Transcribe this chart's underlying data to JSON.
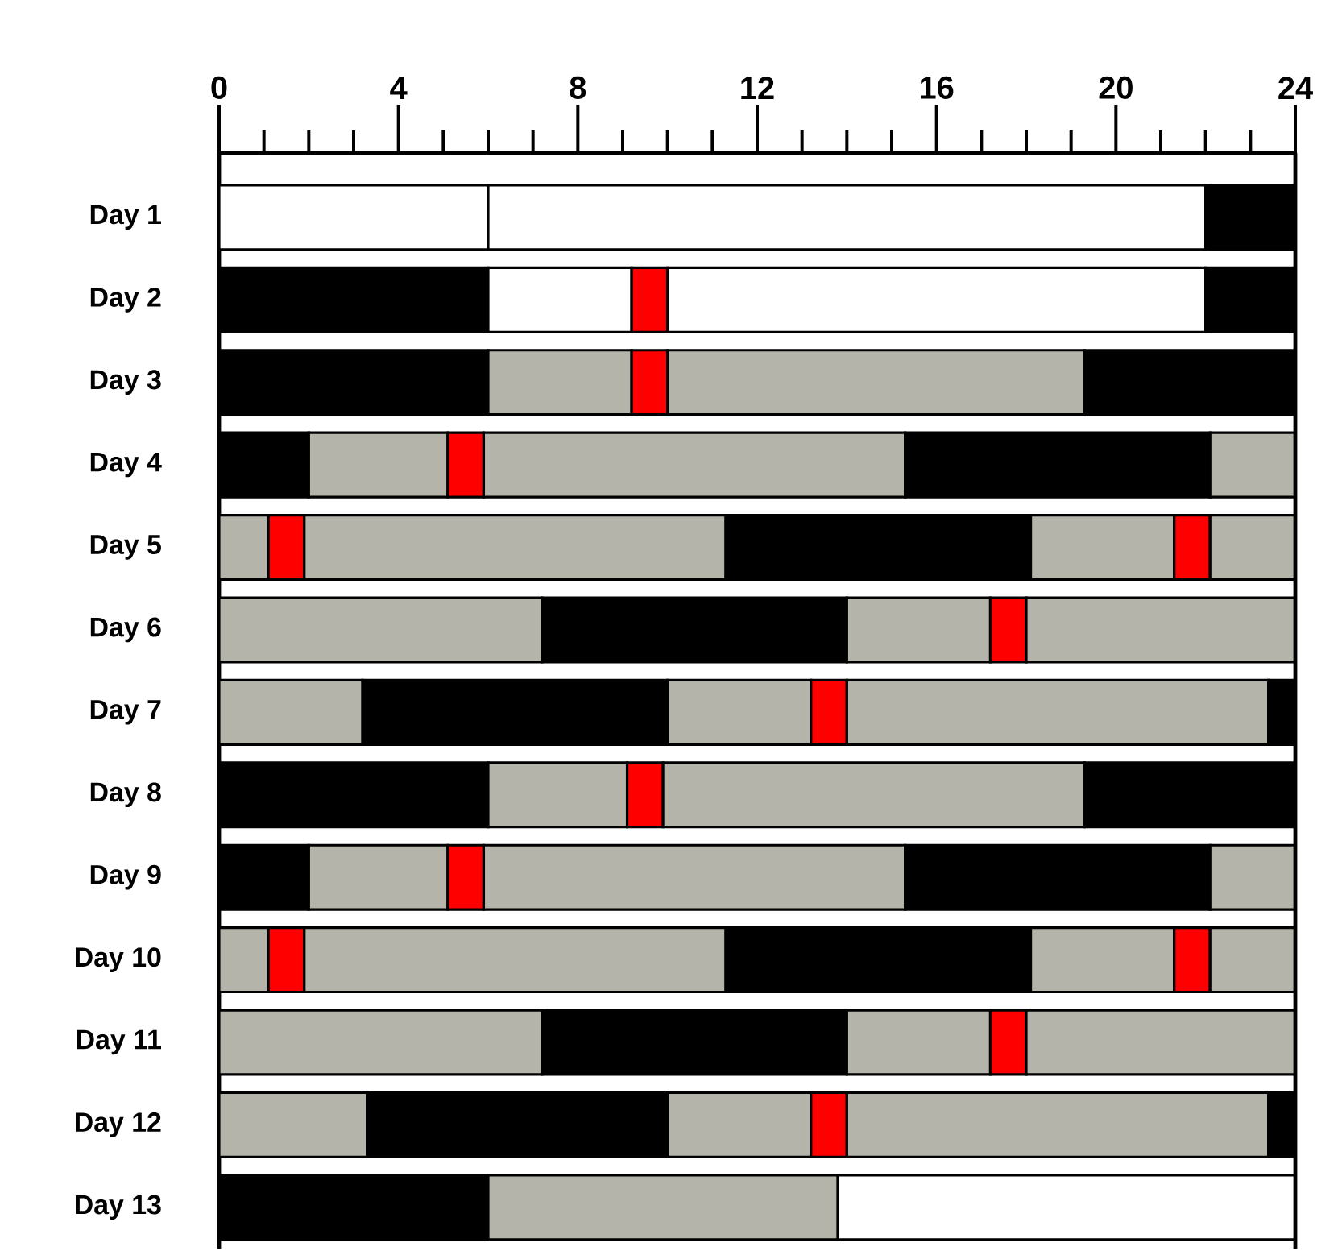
{
  "chart_data": {
    "type": "bar",
    "orientation": "horizontal",
    "stacked": true,
    "categories": [
      "Day 1",
      "Day 2",
      "Day 3",
      "Day 4",
      "Day 5",
      "Day 6",
      "Day 7",
      "Day 8",
      "Day 9",
      "Day 10",
      "Day 11",
      "Day 12",
      "Day 13"
    ],
    "xlim": [
      0,
      24
    ],
    "xticks": [
      0,
      {
        "value": 1,
        "label": null
      },
      {
        "value": 2,
        "label": null
      },
      {
        "value": 3,
        "label": null
      },
      4,
      {
        "value": 5,
        "label": null
      },
      {
        "value": 6,
        "label": null
      },
      {
        "value": 7,
        "label": null
      },
      8,
      {
        "value": 9,
        "label": null
      },
      {
        "value": 10,
        "label": null
      },
      {
        "value": 11,
        "label": null
      },
      12,
      {
        "value": 13,
        "label": null
      },
      {
        "value": 14,
        "label": null
      },
      {
        "value": 15,
        "label": null
      },
      16,
      {
        "value": 17,
        "label": null
      },
      {
        "value": 18,
        "label": null
      },
      {
        "value": 19,
        "label": null
      },
      20,
      {
        "value": 21,
        "label": null
      },
      {
        "value": 22,
        "label": null
      },
      {
        "value": 23,
        "label": null
      },
      24
    ],
    "series": [
      {
        "values": [
          6,
          6,
          6,
          2,
          1.1,
          7.2,
          3.2,
          6,
          2,
          1.1,
          7.2,
          3.3,
          6
        ],
        "colors": [
          "#ffffff",
          "#000000",
          "#000000",
          "#000000",
          "#b4b4aa",
          "#b4b4aa",
          "#b4b4aa",
          "#000000",
          "#000000",
          "#b4b4aa",
          "#b4b4aa",
          "#b4b4aa",
          "#000000"
        ]
      },
      {
        "values": [
          16,
          3.2,
          3.2,
          3.1,
          0.8,
          6.8,
          6.8,
          3.1,
          3.1,
          0.8,
          6.8,
          6.7,
          7.8
        ],
        "colors": [
          "#ffffff",
          "#ffffff",
          "#b4b4aa",
          "#b4b4aa",
          "#ff0000",
          "#000000",
          "#000000",
          "#b4b4aa",
          "#b4b4aa",
          "#ff0000",
          "#000000",
          "#000000",
          "#b4b4aa"
        ]
      },
      {
        "values": [
          2,
          0.8,
          0.8,
          0.8,
          9.4,
          3.2,
          3.2,
          0.8,
          0.8,
          9.4,
          3.2,
          3.2,
          10.2
        ],
        "colors": [
          "#000000",
          "#ff0000",
          "#ff0000",
          "#ff0000",
          "#b4b4aa",
          "#b4b4aa",
          "#b4b4aa",
          "#ff0000",
          "#ff0000",
          "#b4b4aa",
          "#b4b4aa",
          "#b4b4aa",
          "#ffffff"
        ]
      },
      {
        "values": [
          null,
          12,
          9.3,
          9.4,
          6.8,
          0.8,
          0.8,
          9.4,
          9.4,
          6.8,
          0.8,
          0.8,
          null
        ],
        "colors": [
          null,
          "#ffffff",
          "#b4b4aa",
          "#b4b4aa",
          "#000000",
          "#ff0000",
          "#ff0000",
          "#b4b4aa",
          "#b4b4aa",
          "#000000",
          "#ff0000",
          "#ff0000",
          null
        ]
      },
      {
        "values": [
          null,
          2,
          4.7,
          6.8,
          3.2,
          6,
          9.4,
          4.7,
          6.8,
          3.2,
          6,
          9.4,
          null
        ],
        "colors": [
          null,
          "#000000",
          "#000000",
          "#000000",
          "#b4b4aa",
          "#b4b4aa",
          "#b4b4aa",
          "#000000",
          "#000000",
          "#b4b4aa",
          "#b4b4aa",
          "#b4b4aa",
          null
        ]
      },
      {
        "values": [
          null,
          null,
          null,
          1.9,
          0.8,
          null,
          0.6,
          null,
          1.9,
          0.8,
          null,
          0.6,
          null
        ],
        "colors": [
          null,
          null,
          null,
          "#b4b4aa",
          "#ff0000",
          null,
          "#000000",
          null,
          "#b4b4aa",
          "#ff0000",
          null,
          "#000000",
          null
        ]
      },
      {
        "values": [
          null,
          null,
          null,
          null,
          1.9,
          null,
          null,
          null,
          null,
          1.9,
          null,
          null,
          null
        ],
        "colors": [
          null,
          null,
          null,
          null,
          "#b4b4aa",
          null,
          null,
          null,
          null,
          "#b4b4aa",
          null,
          null,
          null
        ]
      }
    ]
  }
}
